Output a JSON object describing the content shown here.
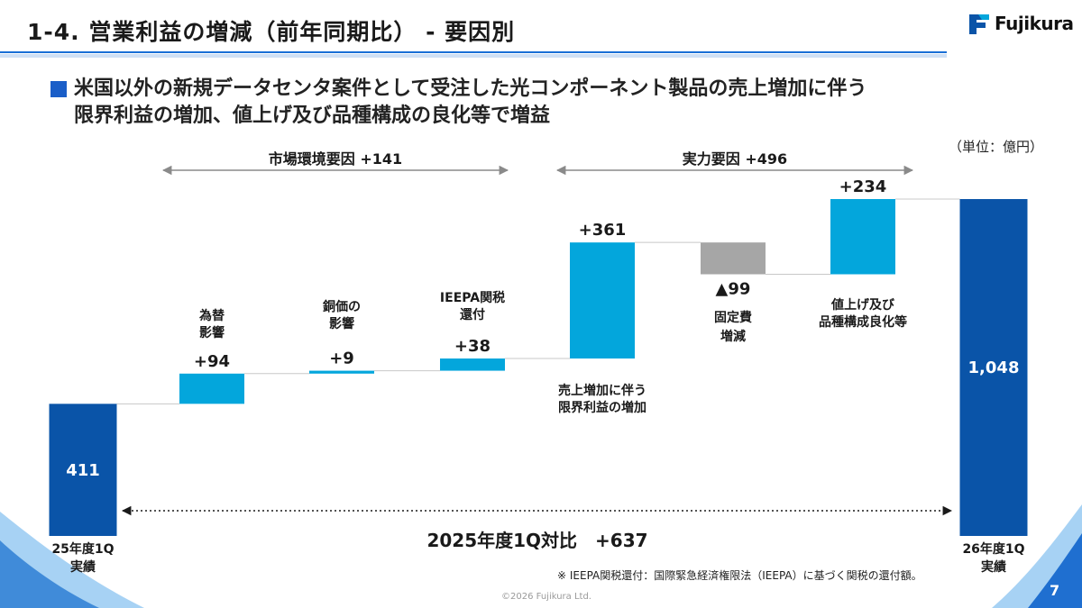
{
  "header": {
    "title": "1-4. 営業利益の増減（前年同期比） - 要因別",
    "logo_text": "Fujikura"
  },
  "headline": {
    "line1": "米国以外の新規データセンタ案件として受注した光コンポーネント製品の売上増加に伴う",
    "line2": "限界利益の増加、値上げ及び品種構成の良化等で増益"
  },
  "unit_note": "（単位：億円）",
  "brackets": {
    "market": "市場環境要因 +141",
    "capability": "実力要因 +496",
    "total": "2025年度1Q対比　+637"
  },
  "colors": {
    "total_bar": "#0a54a8",
    "increase_bar": "#03a6dc",
    "decrease_bar": "#a6a6a6",
    "title_rule": "#1a6fd6",
    "accent_square": "#1a5ec8"
  },
  "footnote": "※ IEEPA関税還付：国際緊急経済権限法（IEEPA）に基づく関税の還付額。",
  "copyright": "©2026 Fujikura Ltd.",
  "page_number": "7",
  "chart_data": {
    "type": "bar",
    "subtype": "waterfall",
    "unit": "億円",
    "ylim": [
      0,
      1100
    ],
    "grid": false,
    "steps": [
      {
        "kind": "total",
        "value": 411,
        "value_label": "411",
        "label": [
          "25年度1Q",
          "実績"
        ]
      },
      {
        "kind": "delta",
        "value": 94,
        "value_label": "+94",
        "label": [
          "為替",
          "影響"
        ]
      },
      {
        "kind": "delta",
        "value": 9,
        "value_label": "+9",
        "label": [
          "銅価の",
          "影響"
        ]
      },
      {
        "kind": "delta",
        "value": 38,
        "value_label": "+38",
        "label": [
          "IEEPA関税",
          "還付"
        ]
      },
      {
        "kind": "delta",
        "value": 361,
        "value_label": "+361",
        "label": [
          "売上増加に伴う",
          "限界利益の増加"
        ]
      },
      {
        "kind": "delta",
        "value": -99,
        "value_label": "▲99",
        "label": [
          "固定費",
          "増減"
        ]
      },
      {
        "kind": "delta",
        "value": 234,
        "value_label": "+234",
        "label": [
          "値上げ及び",
          "品種構成良化等"
        ]
      },
      {
        "kind": "total",
        "value": 1048,
        "value_label": "1,048",
        "label": [
          "26年度1Q",
          "実績"
        ]
      }
    ]
  }
}
